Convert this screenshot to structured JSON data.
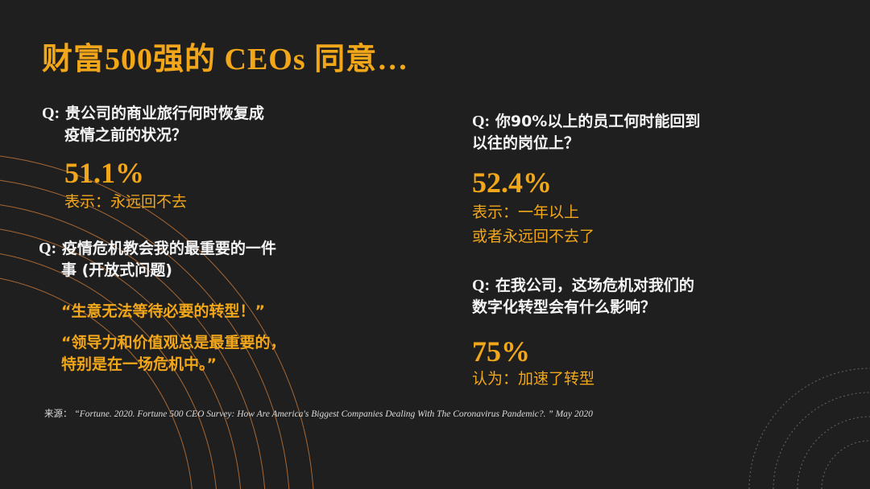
{
  "title": "财富500强的 CEOs 同意…",
  "q1": {
    "prefix": "Q:",
    "line1": "贵公司的商业旅行何时恢复成",
    "line2": "疫情之前的状况？",
    "value": "51.1%",
    "answer": "表示：永远回不去"
  },
  "q2": {
    "prefix": "Q:",
    "line1": "疫情危机教会我的最重要的一件",
    "line2": "事 (开放式问题)",
    "quote1": "“生意无法等待必要的转型！”",
    "quote2_line1": "“领导力和价值观总是最重要的，",
    "quote2_line2": "特别是在一场危机中。”"
  },
  "q3": {
    "prefix": "Q:",
    "line1": "你90%以上的员工何时能回到",
    "line2": "以往的岗位上？",
    "value": "52.4%",
    "answer_line1": "表示：一年以上",
    "answer_line2": "或者永远回不去了"
  },
  "q4": {
    "prefix": "Q:",
    "line1": "在我公司，这场危机对我们的",
    "line2": "数字化转型会有什么影响？",
    "value": "75%",
    "answer": "认为：加速了转型"
  },
  "source": {
    "label": "来源：",
    "text": "“Fortune. 2020. Fortune 500 CEO Survey: How Are America's Biggest Companies Dealing With The Coronavirus Pandemic?. ” May 2020"
  },
  "colors": {
    "background": "#1f1f1f",
    "accent": "#f2a71b",
    "text": "#f4f4f4"
  }
}
